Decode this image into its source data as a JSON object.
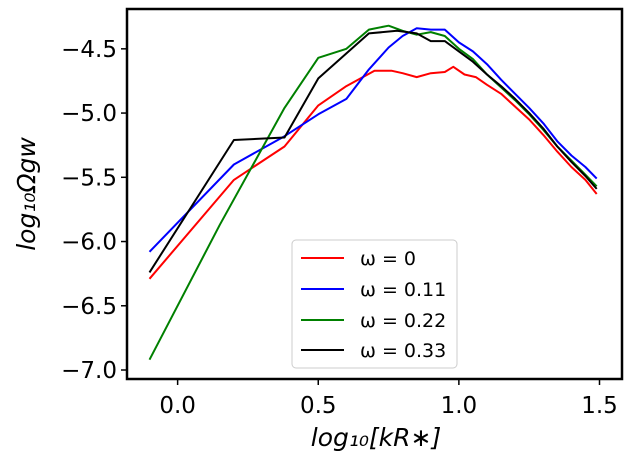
{
  "chart_data": {
    "type": "line",
    "xlabel": "log₁₀[kR∗]",
    "ylabel": "log₁₀Ωgw",
    "xlim": [
      -0.18,
      1.58
    ],
    "ylim": [
      -7.07,
      -4.19
    ],
    "xticks": [
      {
        "value": 0.0,
        "label": "0.0"
      },
      {
        "value": 0.5,
        "label": "0.5"
      },
      {
        "value": 1.0,
        "label": "1.0"
      },
      {
        "value": 1.5,
        "label": "1.5"
      }
    ],
    "yticks": [
      {
        "value": -4.5,
        "label": "−4.5"
      },
      {
        "value": -5.0,
        "label": "−5.0"
      },
      {
        "value": -5.5,
        "label": "−5.5"
      },
      {
        "value": -6.0,
        "label": "−6.0"
      },
      {
        "value": -6.5,
        "label": "−6.5"
      },
      {
        "value": -7.0,
        "label": "−7.0"
      }
    ],
    "legend_position": "lower-center",
    "series": [
      {
        "name": "ω = 0",
        "color": "#ff0000",
        "points": [
          [
            -0.1,
            -6.29
          ],
          [
            0.2,
            -5.52
          ],
          [
            0.38,
            -5.26
          ],
          [
            0.5,
            -4.94
          ],
          [
            0.6,
            -4.79
          ],
          [
            0.7,
            -4.67
          ],
          [
            0.76,
            -4.67
          ],
          [
            0.8,
            -4.69
          ],
          [
            0.85,
            -4.72
          ],
          [
            0.9,
            -4.69
          ],
          [
            0.95,
            -4.68
          ],
          [
            0.98,
            -4.64
          ],
          [
            1.02,
            -4.7
          ],
          [
            1.06,
            -4.72
          ],
          [
            1.1,
            -4.78
          ],
          [
            1.15,
            -4.85
          ],
          [
            1.2,
            -4.95
          ],
          [
            1.25,
            -5.05
          ],
          [
            1.3,
            -5.17
          ],
          [
            1.35,
            -5.3
          ],
          [
            1.4,
            -5.42
          ],
          [
            1.45,
            -5.52
          ],
          [
            1.49,
            -5.63
          ]
        ]
      },
      {
        "name": "ω = 0.11",
        "color": "#0000ff",
        "points": [
          [
            -0.1,
            -6.08
          ],
          [
            0.2,
            -5.4
          ],
          [
            0.38,
            -5.18
          ],
          [
            0.5,
            -5.01
          ],
          [
            0.6,
            -4.89
          ],
          [
            0.68,
            -4.66
          ],
          [
            0.75,
            -4.49
          ],
          [
            0.8,
            -4.4
          ],
          [
            0.85,
            -4.34
          ],
          [
            0.9,
            -4.35
          ],
          [
            0.95,
            -4.35
          ],
          [
            1.0,
            -4.45
          ],
          [
            1.05,
            -4.52
          ],
          [
            1.1,
            -4.62
          ],
          [
            1.15,
            -4.74
          ],
          [
            1.2,
            -4.85
          ],
          [
            1.25,
            -4.96
          ],
          [
            1.3,
            -5.08
          ],
          [
            1.35,
            -5.22
          ],
          [
            1.4,
            -5.33
          ],
          [
            1.45,
            -5.42
          ],
          [
            1.49,
            -5.51
          ]
        ]
      },
      {
        "name": "ω = 0.22",
        "color": "#008000",
        "points": [
          [
            -0.1,
            -6.92
          ],
          [
            0.15,
            -5.87
          ],
          [
            0.38,
            -4.96
          ],
          [
            0.5,
            -4.57
          ],
          [
            0.6,
            -4.5
          ],
          [
            0.68,
            -4.35
          ],
          [
            0.75,
            -4.32
          ],
          [
            0.8,
            -4.36
          ],
          [
            0.85,
            -4.39
          ],
          [
            0.9,
            -4.37
          ],
          [
            0.95,
            -4.4
          ],
          [
            1.0,
            -4.5
          ],
          [
            1.05,
            -4.58
          ],
          [
            1.1,
            -4.7
          ],
          [
            1.15,
            -4.8
          ],
          [
            1.2,
            -4.9
          ],
          [
            1.25,
            -5.01
          ],
          [
            1.3,
            -5.13
          ],
          [
            1.35,
            -5.26
          ],
          [
            1.4,
            -5.37
          ],
          [
            1.45,
            -5.48
          ],
          [
            1.49,
            -5.57
          ]
        ]
      },
      {
        "name": "ω = 0.33",
        "color": "#000000",
        "points": [
          [
            -0.1,
            -6.24
          ],
          [
            0.2,
            -5.21
          ],
          [
            0.38,
            -5.19
          ],
          [
            0.5,
            -4.73
          ],
          [
            0.68,
            -4.38
          ],
          [
            0.78,
            -4.36
          ],
          [
            0.85,
            -4.38
          ],
          [
            0.9,
            -4.44
          ],
          [
            0.95,
            -4.44
          ],
          [
            1.0,
            -4.52
          ],
          [
            1.05,
            -4.6
          ],
          [
            1.1,
            -4.7
          ],
          [
            1.15,
            -4.79
          ],
          [
            1.2,
            -4.89
          ],
          [
            1.25,
            -5.0
          ],
          [
            1.3,
            -5.12
          ],
          [
            1.35,
            -5.26
          ],
          [
            1.4,
            -5.38
          ],
          [
            1.45,
            -5.49
          ],
          [
            1.49,
            -5.59
          ]
        ]
      }
    ]
  }
}
